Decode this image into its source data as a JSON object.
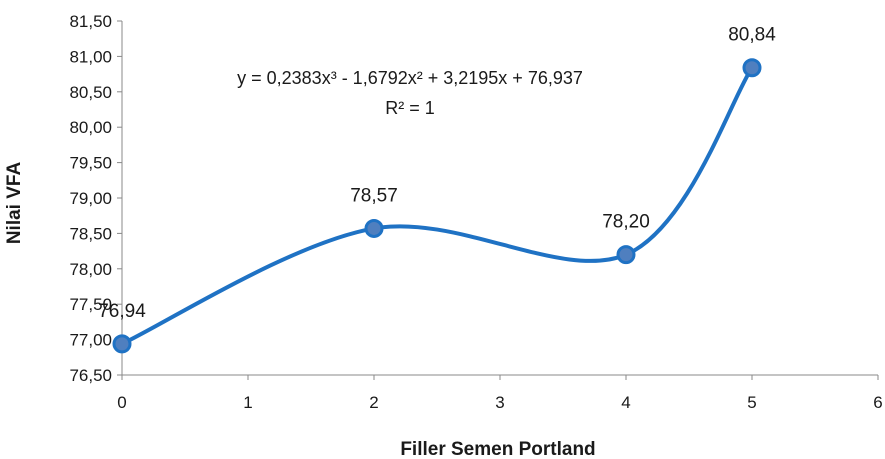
{
  "chart_data": {
    "type": "line",
    "xlabel": "Filler Semen Portland",
    "ylabel": "Nilai VFA",
    "xlim": [
      0,
      6
    ],
    "ylim": [
      76.5,
      81.5
    ],
    "x_ticks": [
      "0",
      "1",
      "2",
      "3",
      "4",
      "5",
      "6"
    ],
    "y_ticks": [
      "76,50",
      "77,00",
      "77,50",
      "78,00",
      "78,50",
      "79,00",
      "79,50",
      "80,00",
      "80,50",
      "81,00",
      "81,50"
    ],
    "series": [
      {
        "x": [
          0,
          2,
          4,
          5
        ],
        "y": [
          76.94,
          78.57,
          78.2,
          80.84
        ],
        "labels": [
          "76,94",
          "78,57",
          "78,20",
          "80,84"
        ],
        "color": "#1f72c4",
        "marker_fill": "#4f7fbf",
        "marker_edge": "#1f72c4",
        "smooth": true
      }
    ],
    "trendline": {
      "equation": "y = 0,2383x³ - 1,6792x² + 3,2195x + 76,937",
      "r_squared": "R² = 1"
    },
    "grid": false,
    "legend": "none"
  }
}
